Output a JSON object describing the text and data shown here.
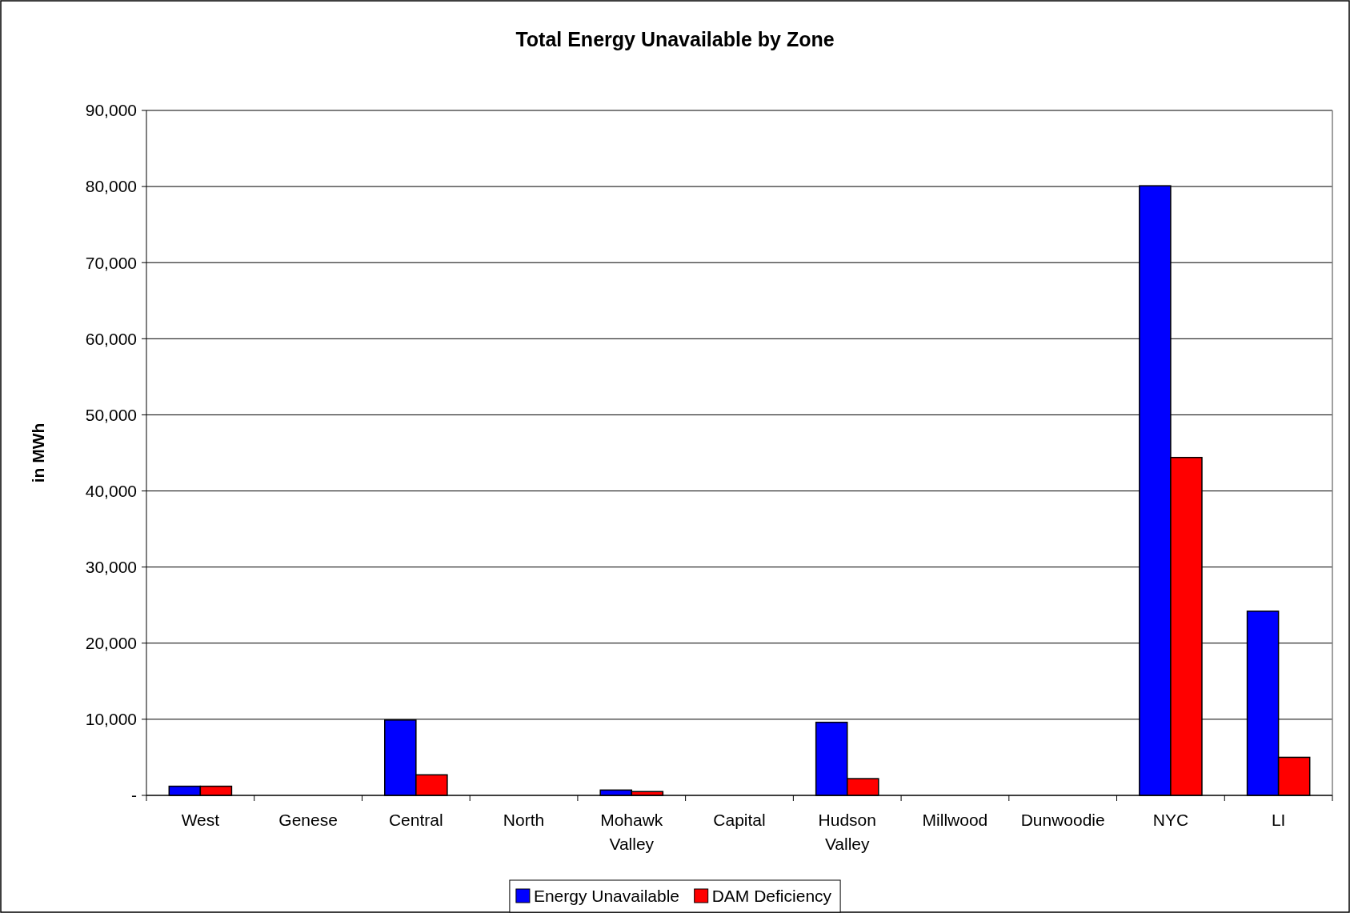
{
  "chart_data": {
    "type": "bar",
    "title": "Total Energy Unavailable by Zone",
    "ylabel": "in MWh",
    "categories": [
      "West",
      "Genese",
      "Central",
      "North",
      "Mohawk Valley",
      "Capital",
      "Hudson Valley",
      "Millwood",
      "Dunwoodie",
      "NYC",
      "LI"
    ],
    "series": [
      {
        "name": "Energy Unavailable",
        "color": "#0000ff",
        "values": [
          1200,
          0,
          9900,
          0,
          700,
          0,
          9600,
          0,
          0,
          80100,
          24200
        ]
      },
      {
        "name": "DAM Deficiency",
        "color": "#ff0000",
        "values": [
          1200,
          0,
          2700,
          0,
          500,
          0,
          2200,
          0,
          0,
          44400,
          5000
        ]
      }
    ],
    "ylim": [
      0,
      90000
    ],
    "yticks": [
      {
        "value": 0,
        "label": "-"
      },
      {
        "value": 10000,
        "label": "10,000"
      },
      {
        "value": 20000,
        "label": "20,000"
      },
      {
        "value": 30000,
        "label": "30,000"
      },
      {
        "value": 40000,
        "label": "40,000"
      },
      {
        "value": 50000,
        "label": "50,000"
      },
      {
        "value": 60000,
        "label": "60,000"
      },
      {
        "value": 70000,
        "label": "70,000"
      },
      {
        "value": 80000,
        "label": "80,000"
      },
      {
        "value": 90000,
        "label": "90,000"
      }
    ],
    "grid": "y",
    "legend": "bottom"
  }
}
